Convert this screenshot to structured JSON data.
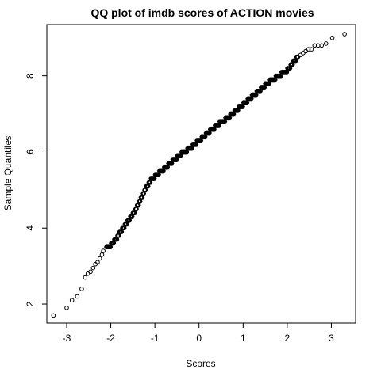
{
  "chart_data": {
    "type": "scatter",
    "title": "QQ plot of imdb scores of ACTION movies",
    "xlabel": "Scores",
    "ylabel": "Sample Quantiles",
    "xlim": [
      -3.45,
      3.55
    ],
    "ylim": [
      1.5,
      9.35
    ],
    "x_ticks": [
      -3,
      -2,
      -1,
      0,
      1,
      2,
      3
    ],
    "y_ticks": [
      2,
      4,
      6,
      8
    ],
    "grid": false,
    "legend": "none",
    "marker": "open-circle",
    "quantile_curve": [
      [
        -3.3,
        1.7
      ],
      [
        -3.0,
        1.9
      ],
      [
        -2.85,
        2.1
      ],
      [
        -2.75,
        2.2
      ],
      [
        -2.65,
        2.4
      ],
      [
        -2.55,
        2.7
      ],
      [
        -2.45,
        2.85
      ],
      [
        -2.35,
        3.0
      ],
      [
        -2.25,
        3.2
      ],
      [
        -2.15,
        3.4
      ],
      [
        -2.0,
        3.55
      ],
      [
        -1.85,
        3.75
      ],
      [
        -1.75,
        3.95
      ],
      [
        -1.6,
        4.2
      ],
      [
        -1.45,
        4.45
      ],
      [
        -1.3,
        4.8
      ],
      [
        -1.2,
        5.05
      ],
      [
        -1.1,
        5.25
      ],
      [
        -1.0,
        5.35
      ],
      [
        -0.8,
        5.55
      ],
      [
        -0.6,
        5.75
      ],
      [
        -0.4,
        5.95
      ],
      [
        -0.2,
        6.1
      ],
      [
        0.0,
        6.3
      ],
      [
        0.2,
        6.5
      ],
      [
        0.4,
        6.7
      ],
      [
        0.6,
        6.85
      ],
      [
        0.8,
        7.05
      ],
      [
        1.0,
        7.25
      ],
      [
        1.2,
        7.45
      ],
      [
        1.4,
        7.65
      ],
      [
        1.6,
        7.85
      ],
      [
        1.8,
        8.0
      ],
      [
        2.0,
        8.15
      ],
      [
        2.1,
        8.3
      ],
      [
        2.2,
        8.45
      ],
      [
        2.3,
        8.55
      ],
      [
        2.4,
        8.65
      ],
      [
        2.5,
        8.7
      ],
      [
        2.65,
        8.8
      ],
      [
        2.8,
        8.85
      ],
      [
        3.0,
        9.0
      ],
      [
        3.3,
        9.1
      ]
    ],
    "tail_points": [
      [
        -3.3,
        1.7
      ],
      [
        -3.0,
        1.9
      ],
      [
        -2.88,
        2.1
      ],
      [
        -2.76,
        2.2
      ],
      [
        -2.66,
        2.4
      ],
      [
        -2.58,
        2.7
      ],
      [
        -2.52,
        2.8
      ],
      [
        -2.46,
        2.85
      ],
      [
        -2.4,
        2.95
      ],
      [
        -2.35,
        3.05
      ],
      [
        -2.3,
        3.1
      ],
      [
        -2.25,
        3.2
      ],
      [
        -2.2,
        3.3
      ],
      [
        -2.17,
        3.4
      ],
      [
        2.3,
        8.55
      ],
      [
        2.36,
        8.6
      ],
      [
        2.42,
        8.65
      ],
      [
        2.48,
        8.7
      ],
      [
        2.55,
        8.7
      ],
      [
        2.62,
        8.8
      ],
      [
        2.7,
        8.8
      ],
      [
        2.78,
        8.8
      ],
      [
        2.88,
        8.85
      ],
      [
        3.02,
        9.0
      ],
      [
        3.3,
        9.1
      ]
    ]
  }
}
